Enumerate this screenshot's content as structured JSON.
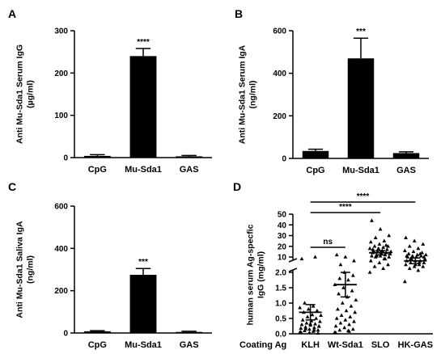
{
  "chart_data": [
    {
      "panel": "A",
      "type": "bar",
      "ylabel": "Anti Mu-Sda1 Serum IgG\n(µg/ml)",
      "categories": [
        "CpG",
        "Mu-Sda1",
        "GAS"
      ],
      "values": [
        4,
        240,
        3
      ],
      "errors": [
        3,
        18,
        2
      ],
      "significance": [
        "",
        "****",
        ""
      ],
      "ylim": [
        0,
        300
      ],
      "yticks": [
        0,
        100,
        200,
        300
      ]
    },
    {
      "panel": "B",
      "type": "bar",
      "ylabel": "Anti Mu-Sda1 Serum IgA\n(ng/ml)",
      "categories": [
        "CpG",
        "Mu-Sda1",
        "GAS"
      ],
      "values": [
        35,
        470,
        25
      ],
      "errors": [
        8,
        95,
        6
      ],
      "significance": [
        "",
        "***",
        ""
      ],
      "ylim": [
        0,
        600
      ],
      "yticks": [
        0,
        200,
        400,
        600
      ]
    },
    {
      "panel": "C",
      "type": "bar",
      "ylabel": "Anti Mu-Sda1 Saliva IgA\n(ng/ml)",
      "categories": [
        "CpG",
        "Mu-Sda1",
        "GAS"
      ],
      "values": [
        8,
        275,
        5
      ],
      "errors": [
        3,
        30,
        3
      ],
      "significance": [
        "",
        "***",
        ""
      ],
      "ylim": [
        0,
        600
      ],
      "yticks": [
        0,
        200,
        400,
        600
      ]
    },
    {
      "panel": "D",
      "type": "scatter",
      "ylabel": "human serum Ag-specfic\nIgG (mg/ml)",
      "xlabel": "Coating Ag",
      "categories": [
        "KLH",
        "Wt-Sda1",
        "SLO",
        "HK-GAS"
      ],
      "y_lower_ticks": [
        0.0,
        0.5,
        1.0,
        1.5,
        2.0
      ],
      "y_upper_ticks": [
        10,
        20,
        30,
        40,
        50
      ],
      "means": [
        0.7,
        1.6,
        14,
        8
      ],
      "errors": [
        0.25,
        0.4,
        2,
        1.5
      ],
      "points": [
        [
          0.05,
          0.08,
          0.1,
          0.12,
          0.15,
          0.18,
          0.2,
          0.22,
          0.25,
          0.28,
          0.3,
          0.32,
          0.35,
          0.4,
          0.42,
          0.45,
          0.5,
          0.55,
          0.6,
          0.62,
          0.7,
          0.75,
          0.8,
          0.85,
          0.9,
          1.0,
          0.02,
          0.04,
          0.06,
          0.12,
          0.16,
          0.24,
          0.33,
          9,
          10
        ],
        [
          0.05,
          0.1,
          0.12,
          0.15,
          0.2,
          0.25,
          0.3,
          0.35,
          0.4,
          0.45,
          0.5,
          0.55,
          0.6,
          0.7,
          0.75,
          0.8,
          0.9,
          1.0,
          1.1,
          1.2,
          1.3,
          1.4,
          1.5,
          1.6,
          1.75,
          1.8,
          1.9,
          2.0,
          0.03,
          0.08,
          6,
          8,
          10,
          12
        ],
        [
          2,
          4,
          5,
          6,
          7,
          8,
          9,
          10,
          10,
          11,
          11,
          12,
          12,
          13,
          13,
          14,
          14,
          15,
          15,
          16,
          16,
          17,
          18,
          18,
          19,
          20,
          20,
          22,
          24,
          25,
          28,
          30,
          36,
          44,
          9,
          11,
          13,
          15,
          17,
          21
        ],
        [
          1.7,
          3,
          4,
          5,
          5,
          6,
          6,
          7,
          7,
          8,
          8,
          8,
          9,
          9,
          10,
          10,
          11,
          11,
          12,
          12,
          13,
          14,
          15,
          16,
          18,
          20,
          22,
          25,
          28,
          7,
          9,
          10,
          6,
          11,
          13
        ]
      ],
      "comparisons": [
        {
          "groups": [
            "KLH",
            "Wt-Sda1"
          ],
          "label": "ns"
        },
        {
          "groups": [
            "KLH",
            "SLO"
          ],
          "label": "****"
        },
        {
          "groups": [
            "KLH",
            "HK-GAS"
          ],
          "label": "****"
        }
      ]
    }
  ]
}
